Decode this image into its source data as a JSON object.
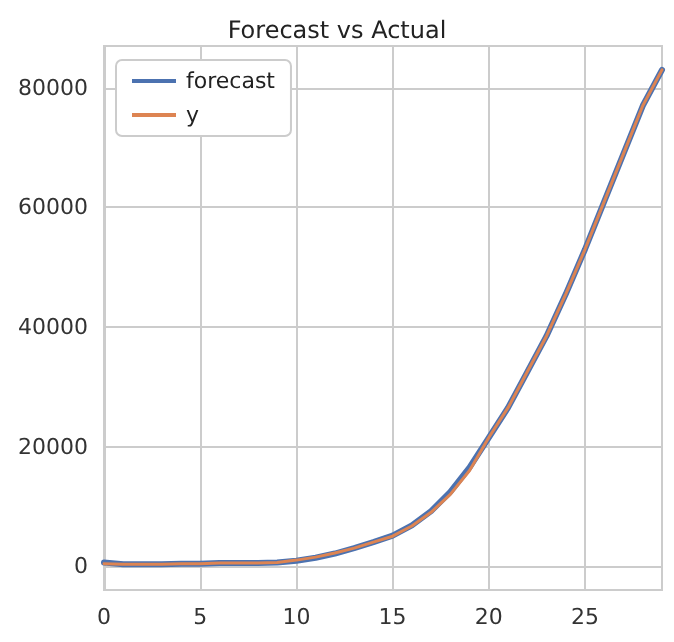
{
  "chart_data": {
    "type": "line",
    "title": "Forecast vs Actual",
    "x": [
      0,
      1,
      2,
      3,
      4,
      5,
      6,
      7,
      8,
      9,
      10,
      11,
      12,
      13,
      14,
      15,
      16,
      17,
      18,
      19,
      20,
      21,
      22,
      23,
      24,
      25,
      26,
      27,
      28,
      29
    ],
    "series": [
      {
        "name": "forecast",
        "color": "#4c72b0",
        "values": [
          600,
          300,
          300,
          300,
          400,
          400,
          500,
          500,
          500,
          600,
          900,
          1400,
          2100,
          3000,
          4000,
          5100,
          6800,
          9200,
          12400,
          16500,
          21500,
          26500,
          32500,
          38500,
          45500,
          53000,
          61000,
          69000,
          77000,
          83000
        ]
      },
      {
        "name": "y",
        "color": "#dd8452",
        "values": [
          400,
          300,
          300,
          300,
          400,
          400,
          500,
          500,
          500,
          600,
          1000,
          1500,
          2200,
          3000,
          4000,
          5000,
          6700,
          9000,
          12000,
          16000,
          21500,
          26500,
          32500,
          38500,
          45500,
          53000,
          61000,
          69000,
          77000,
          83000
        ]
      }
    ],
    "xlim": [
      0,
      29
    ],
    "xticks": [
      0,
      5,
      10,
      15,
      20,
      25
    ],
    "ylim": [
      -4000,
      87000
    ],
    "yticks": [
      0,
      20000,
      40000,
      60000,
      80000
    ],
    "grid": true,
    "legend": "top left",
    "marker": "none",
    "line_style": "solid"
  }
}
